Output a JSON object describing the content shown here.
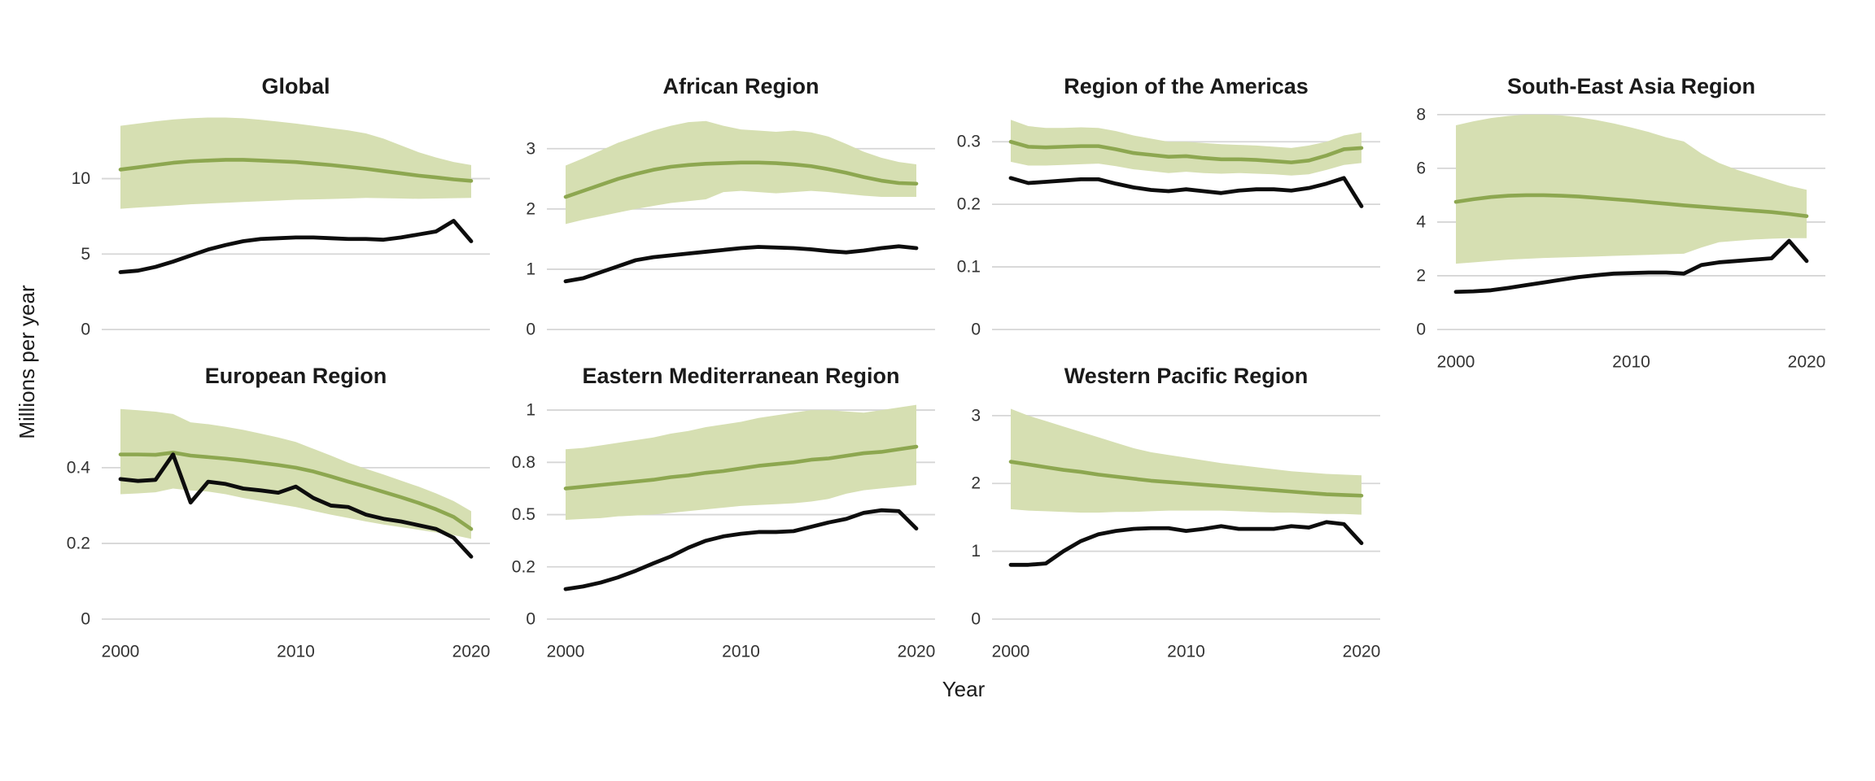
{
  "figure": {
    "y_axis_title": "Millions per year",
    "x_axis_title": "Year"
  },
  "chart_data": {
    "type": "line",
    "description_free": "7 faceted panels, green estimate line with shaded uncertainty band and black line, years 2000-2020",
    "x": [
      2000,
      2001,
      2002,
      2003,
      2004,
      2005,
      2006,
      2007,
      2008,
      2009,
      2010,
      2011,
      2012,
      2013,
      2014,
      2015,
      2016,
      2017,
      2018,
      2019,
      2020
    ],
    "x_ticks": [
      2000,
      2010,
      2020
    ],
    "shared_ylabel": "Millions per year",
    "shared_xlabel": "Year",
    "grid": "horizontal-only",
    "legend": "none",
    "colors": {
      "green_line": "#8da750",
      "green_band": "#d6dfb2",
      "black_line": "#0d0d0d",
      "gridline": "#d6d6d6",
      "tick_text": "#333333",
      "title_text": "#1a1a1a"
    },
    "panels": [
      {
        "title": "Global",
        "yticks": [
          0,
          5,
          10
        ],
        "tick_spacing": "proportional",
        "ymax": 15.1,
        "series": {
          "green_line": [
            10.6,
            10.75,
            10.9,
            11.05,
            11.15,
            11.2,
            11.25,
            11.25,
            11.2,
            11.15,
            11.1,
            11.0,
            10.9,
            10.78,
            10.65,
            10.5,
            10.35,
            10.2,
            10.08,
            9.95,
            9.85
          ],
          "band_upper": [
            13.5,
            13.65,
            13.8,
            13.92,
            14.0,
            14.05,
            14.05,
            14.0,
            13.9,
            13.78,
            13.65,
            13.5,
            13.35,
            13.2,
            13.0,
            12.65,
            12.2,
            11.75,
            11.4,
            11.1,
            10.9
          ],
          "band_lower": [
            8.0,
            8.08,
            8.15,
            8.22,
            8.3,
            8.35,
            8.4,
            8.45,
            8.5,
            8.55,
            8.6,
            8.62,
            8.65,
            8.68,
            8.72,
            8.7,
            8.68,
            8.66,
            8.68,
            8.7,
            8.72
          ],
          "black_line": [
            3.8,
            3.9,
            4.15,
            4.5,
            4.9,
            5.3,
            5.6,
            5.85,
            6.0,
            6.05,
            6.1,
            6.1,
            6.05,
            6.0,
            6.0,
            5.95,
            6.1,
            6.3,
            6.5,
            7.2,
            5.85
          ]
        }
      },
      {
        "title": "African Region",
        "yticks": [
          0,
          1,
          2,
          3
        ],
        "tick_spacing": "proportional",
        "ymax": 3.78,
        "series": {
          "green_line": [
            2.2,
            2.3,
            2.4,
            2.5,
            2.58,
            2.65,
            2.7,
            2.73,
            2.75,
            2.76,
            2.77,
            2.77,
            2.76,
            2.74,
            2.71,
            2.66,
            2.6,
            2.53,
            2.47,
            2.43,
            2.42
          ],
          "band_upper": [
            2.72,
            2.84,
            2.97,
            3.1,
            3.2,
            3.3,
            3.38,
            3.44,
            3.46,
            3.38,
            3.32,
            3.3,
            3.28,
            3.3,
            3.27,
            3.2,
            3.08,
            2.95,
            2.85,
            2.78,
            2.74
          ],
          "band_lower": [
            1.75,
            1.82,
            1.88,
            1.94,
            2.0,
            2.05,
            2.1,
            2.13,
            2.16,
            2.28,
            2.3,
            2.28,
            2.26,
            2.28,
            2.3,
            2.28,
            2.25,
            2.22,
            2.2,
            2.2,
            2.2
          ],
          "black_line": [
            0.8,
            0.85,
            0.95,
            1.05,
            1.15,
            1.2,
            1.23,
            1.26,
            1.29,
            1.32,
            1.35,
            1.37,
            1.36,
            1.35,
            1.33,
            1.3,
            1.28,
            1.31,
            1.35,
            1.38,
            1.35
          ]
        }
      },
      {
        "title": "Region of the Americas",
        "yticks": [
          0,
          0.1,
          0.2,
          0.3
        ],
        "tick_spacing": "proportional",
        "ymax": 0.364,
        "series": {
          "green_line": [
            0.3,
            0.292,
            0.291,
            0.292,
            0.293,
            0.293,
            0.288,
            0.282,
            0.279,
            0.276,
            0.277,
            0.274,
            0.272,
            0.272,
            0.271,
            0.269,
            0.267,
            0.27,
            0.278,
            0.288,
            0.29
          ],
          "band_upper": [
            0.335,
            0.325,
            0.322,
            0.322,
            0.323,
            0.322,
            0.317,
            0.31,
            0.305,
            0.3,
            0.3,
            0.298,
            0.296,
            0.295,
            0.294,
            0.292,
            0.29,
            0.294,
            0.3,
            0.31,
            0.315
          ],
          "band_lower": [
            0.268,
            0.262,
            0.262,
            0.263,
            0.264,
            0.265,
            0.261,
            0.256,
            0.253,
            0.25,
            0.252,
            0.25,
            0.249,
            0.25,
            0.249,
            0.248,
            0.246,
            0.248,
            0.255,
            0.263,
            0.266
          ],
          "black_line": [
            0.242,
            0.234,
            0.236,
            0.238,
            0.24,
            0.24,
            0.233,
            0.227,
            0.223,
            0.221,
            0.224,
            0.221,
            0.218,
            0.222,
            0.224,
            0.224,
            0.222,
            0.226,
            0.233,
            0.242,
            0.197
          ]
        }
      },
      {
        "title": "South-East Asia Region",
        "yticks": [
          0,
          2,
          4,
          6,
          8
        ],
        "tick_spacing": "proportional",
        "ymax": 8.48,
        "series": {
          "green_line": [
            4.75,
            4.85,
            4.93,
            4.98,
            5.0,
            5.0,
            4.98,
            4.95,
            4.9,
            4.85,
            4.8,
            4.74,
            4.68,
            4.62,
            4.57,
            4.52,
            4.47,
            4.42,
            4.37,
            4.3,
            4.22
          ],
          "band_upper": [
            7.6,
            7.75,
            7.87,
            7.95,
            8.0,
            8.0,
            7.97,
            7.9,
            7.8,
            7.67,
            7.52,
            7.35,
            7.15,
            7.0,
            6.55,
            6.2,
            5.95,
            5.75,
            5.55,
            5.35,
            5.2
          ],
          "band_lower": [
            2.45,
            2.5,
            2.55,
            2.6,
            2.63,
            2.66,
            2.68,
            2.7,
            2.72,
            2.74,
            2.76,
            2.78,
            2.8,
            2.82,
            3.05,
            3.25,
            3.3,
            3.35,
            3.38,
            3.4,
            3.4
          ],
          "black_line": [
            1.4,
            1.42,
            1.46,
            1.55,
            1.65,
            1.75,
            1.85,
            1.95,
            2.02,
            2.08,
            2.1,
            2.12,
            2.12,
            2.08,
            2.4,
            2.5,
            2.55,
            2.6,
            2.65,
            3.3,
            2.55
          ]
        }
      },
      {
        "title": "European Region",
        "yticks": [
          0,
          0.2,
          0.4
        ],
        "tick_spacing": "proportional",
        "ymax": 0.604,
        "series": {
          "green_line": [
            0.435,
            0.435,
            0.434,
            0.44,
            0.432,
            0.428,
            0.424,
            0.419,
            0.413,
            0.407,
            0.4,
            0.39,
            0.377,
            0.363,
            0.35,
            0.336,
            0.322,
            0.307,
            0.29,
            0.27,
            0.238
          ],
          "band_upper": [
            0.555,
            0.552,
            0.548,
            0.542,
            0.52,
            0.515,
            0.508,
            0.5,
            0.49,
            0.48,
            0.468,
            0.45,
            0.432,
            0.413,
            0.397,
            0.382,
            0.366,
            0.35,
            0.332,
            0.312,
            0.285
          ],
          "band_lower": [
            0.33,
            0.332,
            0.335,
            0.345,
            0.34,
            0.337,
            0.33,
            0.32,
            0.312,
            0.304,
            0.296,
            0.286,
            0.276,
            0.267,
            0.258,
            0.25,
            0.243,
            0.236,
            0.229,
            0.222,
            0.212
          ],
          "black_line": [
            0.37,
            0.365,
            0.368,
            0.435,
            0.308,
            0.363,
            0.357,
            0.345,
            0.34,
            0.334,
            0.35,
            0.32,
            0.3,
            0.296,
            0.276,
            0.265,
            0.258,
            0.248,
            0.238,
            0.215,
            0.165
          ]
        }
      },
      {
        "title": "Eastern Mediterranean Region",
        "yticks": [
          0,
          0.2,
          0.5,
          0.8,
          1
        ],
        "tick_spacing": "even",
        "ymax": 1.075,
        "series": {
          "green_line": [
            0.65,
            0.66,
            0.67,
            0.68,
            0.69,
            0.7,
            0.715,
            0.725,
            0.74,
            0.75,
            0.765,
            0.78,
            0.79,
            0.8,
            0.81,
            0.815,
            0.825,
            0.835,
            0.84,
            0.85,
            0.86
          ],
          "band_upper": [
            0.85,
            0.855,
            0.865,
            0.875,
            0.885,
            0.895,
            0.91,
            0.92,
            0.935,
            0.945,
            0.955,
            0.97,
            0.98,
            0.99,
            1.0,
            1.0,
            0.995,
            0.99,
            1.0,
            1.01,
            1.02
          ],
          "band_lower": [
            0.47,
            0.475,
            0.48,
            0.49,
            0.495,
            0.5,
            0.51,
            0.52,
            0.53,
            0.54,
            0.55,
            0.555,
            0.56,
            0.565,
            0.575,
            0.59,
            0.62,
            0.64,
            0.65,
            0.66,
            0.67
          ],
          "black_line": [
            0.115,
            0.125,
            0.14,
            0.16,
            0.185,
            0.22,
            0.26,
            0.31,
            0.35,
            0.375,
            0.39,
            0.4,
            0.4,
            0.405,
            0.43,
            0.455,
            0.475,
            0.51,
            0.525,
            0.52,
            0.42
          ]
        }
      },
      {
        "title": "Western Pacific Region",
        "yticks": [
          0,
          1,
          2,
          3
        ],
        "tick_spacing": "proportional",
        "ymax": 3.37,
        "series": {
          "green_line": [
            2.32,
            2.28,
            2.24,
            2.2,
            2.17,
            2.13,
            2.1,
            2.07,
            2.04,
            2.02,
            2.0,
            1.98,
            1.96,
            1.94,
            1.92,
            1.9,
            1.88,
            1.86,
            1.84,
            1.83,
            1.82
          ],
          "band_upper": [
            3.1,
            3.0,
            2.92,
            2.84,
            2.76,
            2.68,
            2.6,
            2.52,
            2.46,
            2.42,
            2.38,
            2.34,
            2.3,
            2.27,
            2.24,
            2.21,
            2.18,
            2.16,
            2.14,
            2.13,
            2.12
          ],
          "band_lower": [
            1.62,
            1.6,
            1.59,
            1.58,
            1.57,
            1.57,
            1.58,
            1.58,
            1.59,
            1.6,
            1.6,
            1.6,
            1.6,
            1.59,
            1.58,
            1.57,
            1.57,
            1.56,
            1.55,
            1.55,
            1.54
          ],
          "black_line": [
            0.8,
            0.8,
            0.82,
            1.0,
            1.15,
            1.25,
            1.3,
            1.33,
            1.34,
            1.34,
            1.3,
            1.33,
            1.37,
            1.33,
            1.33,
            1.33,
            1.37,
            1.35,
            1.43,
            1.4,
            1.12
          ]
        }
      }
    ]
  }
}
